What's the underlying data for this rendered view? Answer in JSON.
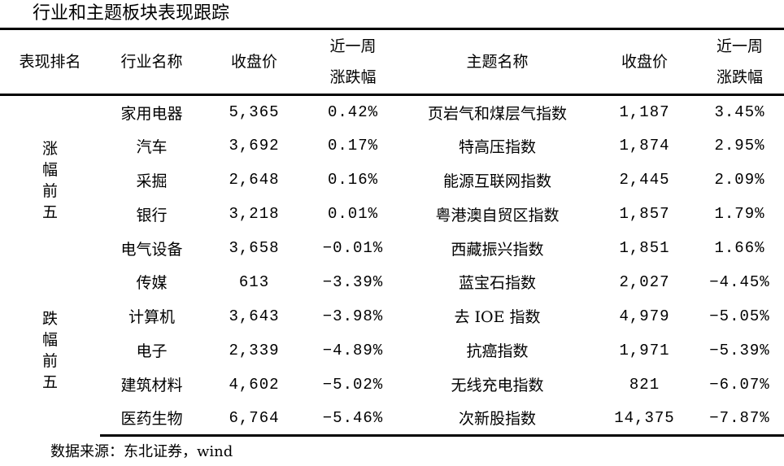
{
  "title": "行业和主题板块表现跟踪",
  "headers": {
    "rank": "表现排名",
    "industry": "行业名称",
    "industry_close": "收盘价",
    "industry_change_line1": "近一周",
    "industry_change_line2": "涨跌幅",
    "theme": "主题名称",
    "theme_close": "收盘价",
    "theme_change_line1": "近一周",
    "theme_change_line2": "涨跌幅"
  },
  "groups": [
    "涨幅前五",
    "跌幅前五"
  ],
  "rows": [
    {
      "industry": "家用电器",
      "industry_close": "5,365",
      "industry_change": "0.42%",
      "theme": "页岩气和煤层气指数",
      "theme_close": "1,187",
      "theme_change": "3.45%"
    },
    {
      "industry": "汽车",
      "industry_close": "3,692",
      "industry_change": "0.17%",
      "theme": "特高压指数",
      "theme_close": "1,874",
      "theme_change": "2.95%"
    },
    {
      "industry": "采掘",
      "industry_close": "2,648",
      "industry_change": "0.16%",
      "theme": "能源互联网指数",
      "theme_close": "2,445",
      "theme_change": "2.09%"
    },
    {
      "industry": "银行",
      "industry_close": "3,218",
      "industry_change": "0.01%",
      "theme": "粤港澳自贸区指数",
      "theme_close": "1,857",
      "theme_change": "1.79%"
    },
    {
      "industry": "电气设备",
      "industry_close": "3,658",
      "industry_change": "−0.01%",
      "theme": "西藏振兴指数",
      "theme_close": "1,851",
      "theme_change": "1.66%"
    },
    {
      "industry": "传媒",
      "industry_close": "613",
      "industry_change": "−3.39%",
      "theme": "蓝宝石指数",
      "theme_close": "2,027",
      "theme_change": "−4.45%"
    },
    {
      "industry": "计算机",
      "industry_close": "3,643",
      "industry_change": "−3.98%",
      "theme": "去 IOE 指数",
      "theme_close": "4,979",
      "theme_change": "−5.05%"
    },
    {
      "industry": "电子",
      "industry_close": "2,339",
      "industry_change": "−4.89%",
      "theme": "抗癌指数",
      "theme_close": "1,971",
      "theme_change": "−5.39%"
    },
    {
      "industry": "建筑材料",
      "industry_close": "4,602",
      "industry_change": "−5.02%",
      "theme": "无线充电指数",
      "theme_close": "821",
      "theme_change": "−6.07%"
    },
    {
      "industry": "医药生物",
      "industry_close": "6,764",
      "industry_change": "−5.46%",
      "theme": "次新股指数",
      "theme_close": "14,375",
      "theme_change": "−7.87%"
    }
  ],
  "source": "数据来源：东北证券，wind"
}
